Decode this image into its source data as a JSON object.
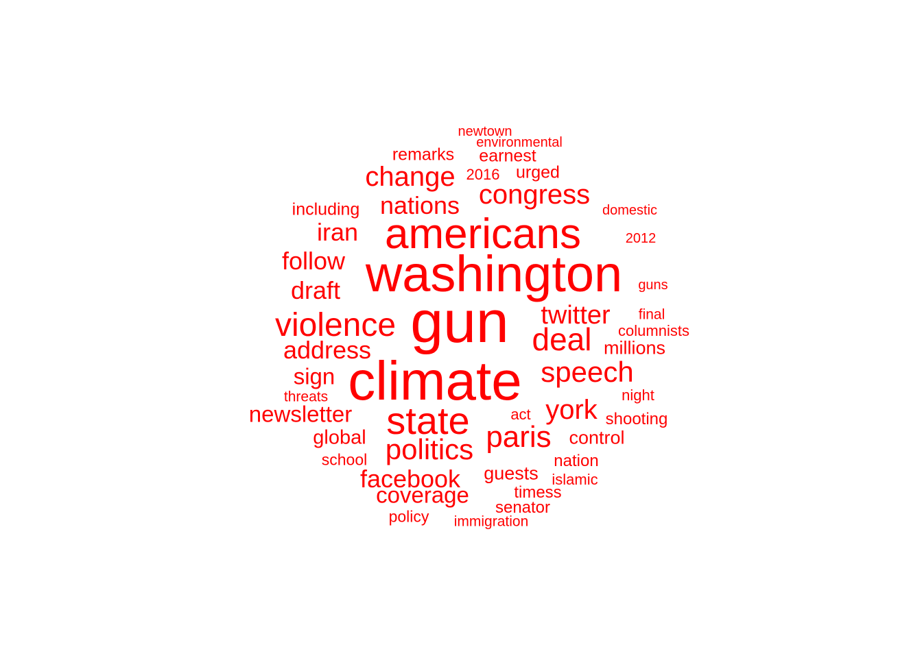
{
  "color": "#ff0000",
  "background": "#ffffff",
  "words": [
    {
      "text": "gun",
      "weight": 86
    },
    {
      "text": "climate",
      "weight": 80
    },
    {
      "text": "washington",
      "weight": 74
    },
    {
      "text": "americans",
      "weight": 62
    },
    {
      "text": "state",
      "weight": 56
    },
    {
      "text": "violence",
      "weight": 48
    },
    {
      "text": "deal",
      "weight": 46
    },
    {
      "text": "paris",
      "weight": 44
    },
    {
      "text": "politics",
      "weight": 42
    },
    {
      "text": "speech",
      "weight": 42
    },
    {
      "text": "york",
      "weight": 40
    },
    {
      "text": "change",
      "weight": 40
    },
    {
      "text": "congress",
      "weight": 40
    },
    {
      "text": "twitter",
      "weight": 38
    },
    {
      "text": "nations",
      "weight": 36
    },
    {
      "text": "address",
      "weight": 36
    },
    {
      "text": "facebook",
      "weight": 36
    },
    {
      "text": "follow",
      "weight": 36
    },
    {
      "text": "draft",
      "weight": 36
    },
    {
      "text": "iran",
      "weight": 36
    },
    {
      "text": "newsletter",
      "weight": 33
    },
    {
      "text": "sign",
      "weight": 33
    },
    {
      "text": "coverage",
      "weight": 33
    },
    {
      "text": "global",
      "weight": 29
    },
    {
      "text": "control",
      "weight": 27
    },
    {
      "text": "guests",
      "weight": 27
    },
    {
      "text": "millions",
      "weight": 27
    },
    {
      "text": "including",
      "weight": 25
    },
    {
      "text": "urged",
      "weight": 25
    },
    {
      "text": "remarks",
      "weight": 25
    },
    {
      "text": "earnest",
      "weight": 25
    },
    {
      "text": "shooting",
      "weight": 24
    },
    {
      "text": "nation",
      "weight": 24
    },
    {
      "text": "timess",
      "weight": 24
    },
    {
      "text": "senator",
      "weight": 24
    },
    {
      "text": "policy",
      "weight": 23
    },
    {
      "text": "school",
      "weight": 23
    },
    {
      "text": "islamic",
      "weight": 22
    },
    {
      "text": "columnists",
      "weight": 22
    },
    {
      "text": "act",
      "weight": 22
    },
    {
      "text": "night",
      "weight": 22
    },
    {
      "text": "2016",
      "weight": 22
    },
    {
      "text": "final",
      "weight": 21
    },
    {
      "text": "threats",
      "weight": 21
    },
    {
      "text": "immigration",
      "weight": 21
    },
    {
      "text": "environmental",
      "weight": 20
    },
    {
      "text": "domestic",
      "weight": 20
    },
    {
      "text": "2012",
      "weight": 20
    },
    {
      "text": "guns",
      "weight": 20
    },
    {
      "text": "newtown",
      "weight": 20
    }
  ]
}
